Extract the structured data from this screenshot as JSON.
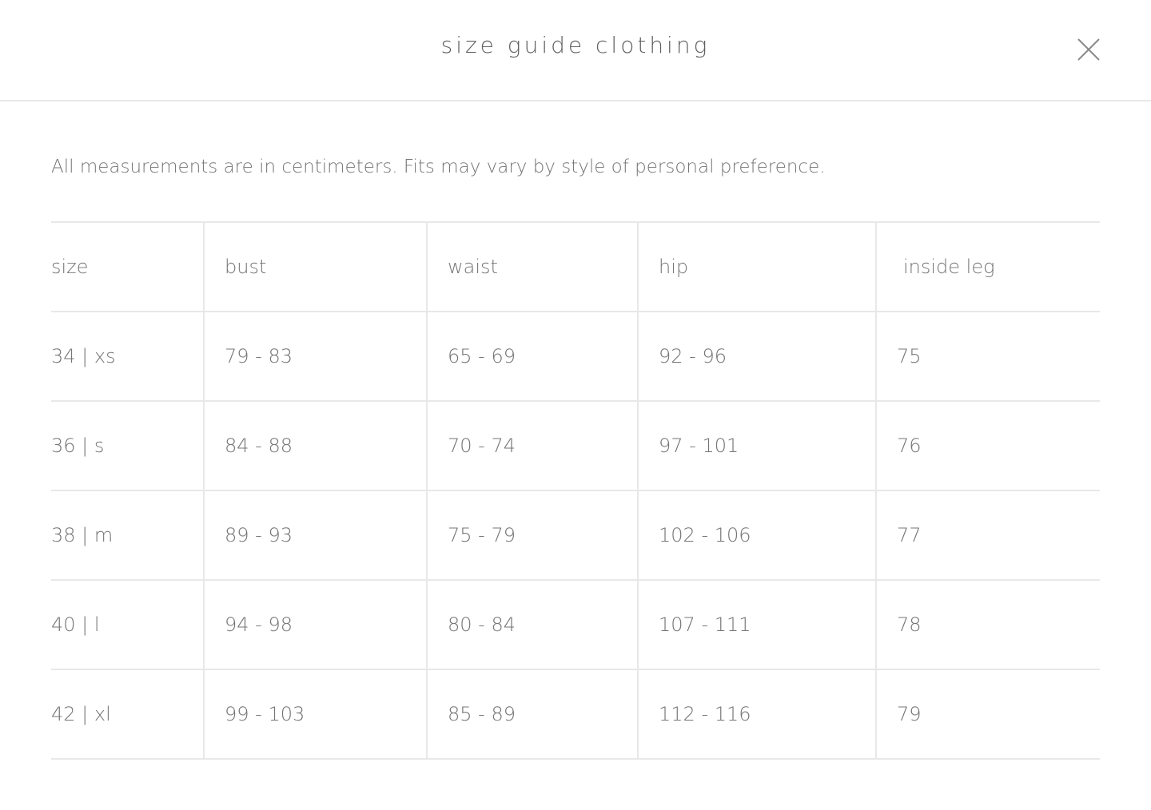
{
  "header": {
    "title": "size guide clothing",
    "close_icon": "close-x-icon"
  },
  "note": "All measurements are in centimeters. Fits may vary by style of personal preference.",
  "table": {
    "headers": [
      "size",
      "bust",
      "waist",
      "hip",
      "inside leg"
    ],
    "rows": [
      [
        "34 | xs",
        "79 - 83",
        "65 - 69",
        "92 - 96",
        "75"
      ],
      [
        "36 | s",
        "84 - 88",
        "70 - 74",
        "97 - 101",
        "76"
      ],
      [
        "38 | m",
        "89 - 93",
        "75 - 79",
        "102 - 106",
        "77"
      ],
      [
        "40 | l",
        "94 - 98",
        "80 - 84",
        "107 - 111",
        "78"
      ],
      [
        "42 | xl",
        "99 - 103",
        "85 - 89",
        "112 - 116",
        "79"
      ]
    ]
  }
}
